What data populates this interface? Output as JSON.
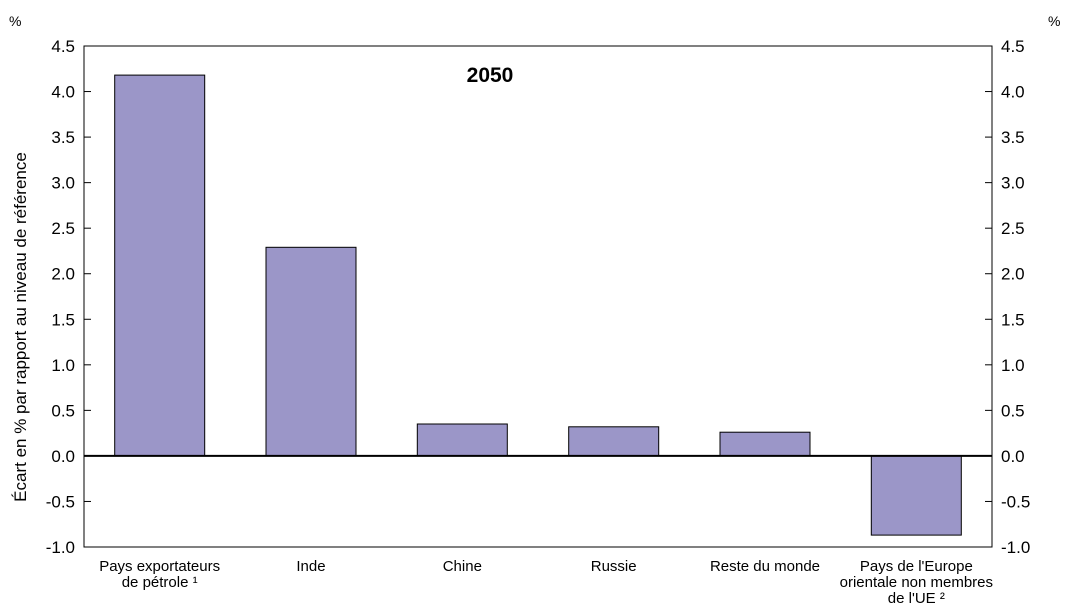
{
  "chart_data": {
    "type": "bar",
    "title": "2050",
    "ylabel": "Écart en % par rapport au niveau de référence",
    "unit_left": "%",
    "unit_right": "%",
    "ylim": [
      -1.0,
      4.5
    ],
    "yticks": [
      "4.5",
      "4.0",
      "3.5",
      "3.0",
      "2.5",
      "2.0",
      "1.5",
      "1.0",
      "0.5",
      "0.0",
      "-0.5",
      "-1.0"
    ],
    "yticks_values": [
      4.5,
      4.0,
      3.5,
      3.0,
      2.5,
      2.0,
      1.5,
      1.0,
      0.5,
      0.0,
      -0.5,
      -1.0
    ],
    "categories": [
      [
        "Pays exportateurs",
        "de pétrole ¹"
      ],
      [
        "Inde"
      ],
      [
        "Chine"
      ],
      [
        "Russie"
      ],
      [
        "Reste du monde"
      ],
      [
        "Pays de l'Europe",
        "orientale non membres",
        "de l'UE ²"
      ]
    ],
    "values": [
      4.18,
      2.29,
      0.35,
      0.32,
      0.26,
      -0.87
    ],
    "bar_color": "#9b96c8",
    "grid": false
  }
}
